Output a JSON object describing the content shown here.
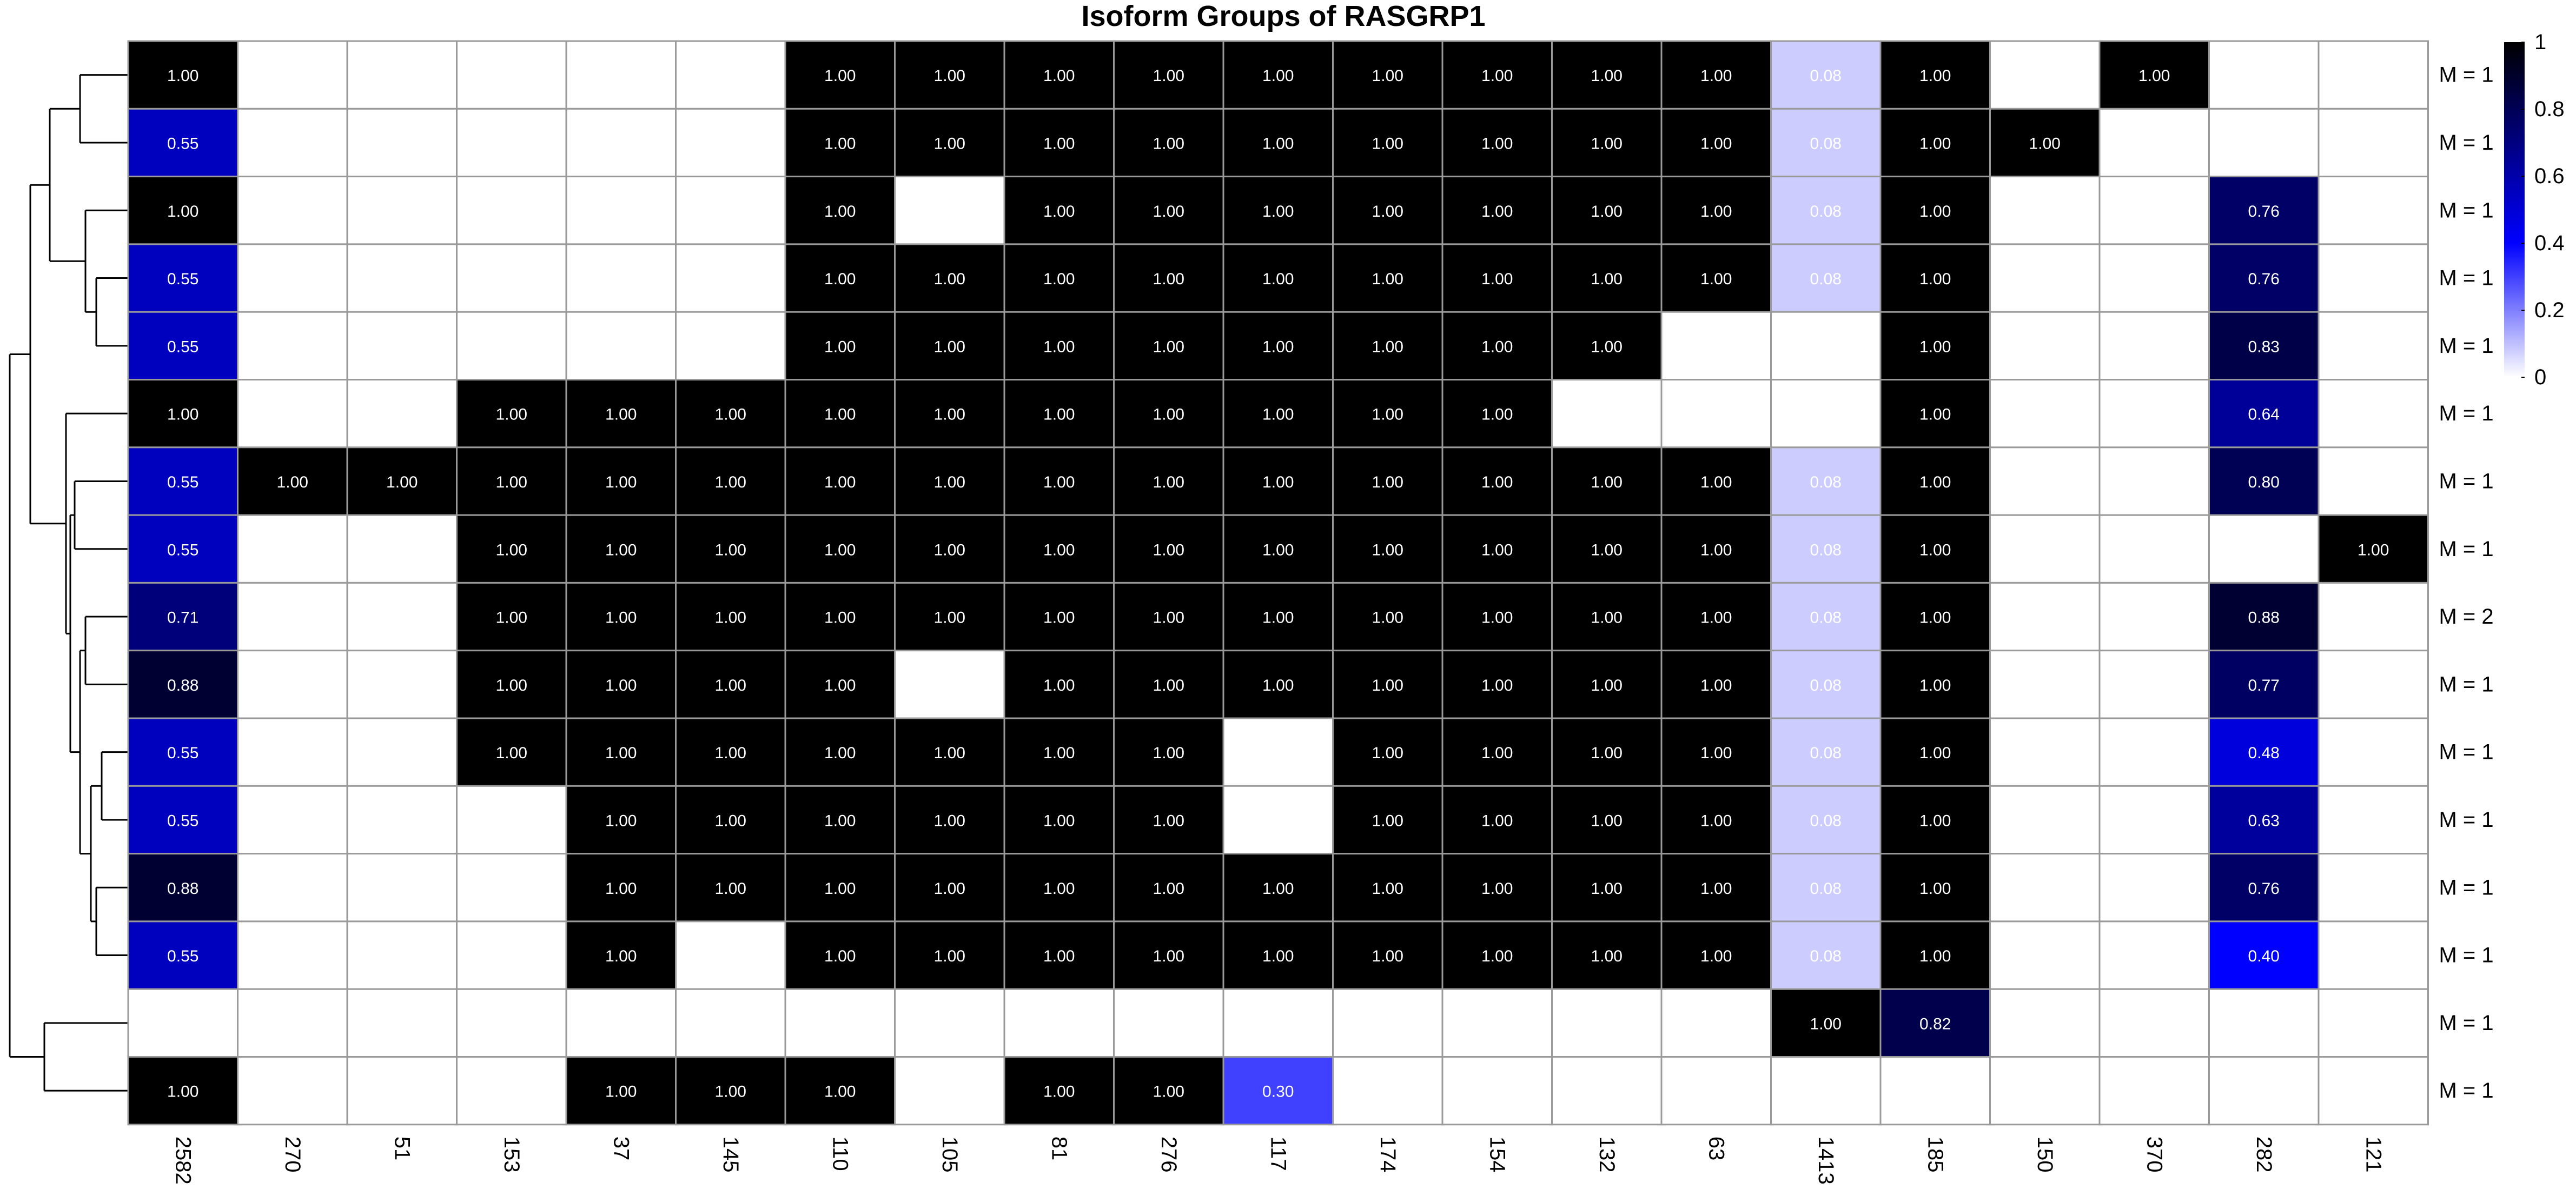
{
  "chart_data": {
    "type": "heatmap",
    "title": "Isoform Groups of RASGRP1",
    "columns": [
      "2582",
      "270",
      "51",
      "153",
      "37",
      "145",
      "110",
      "105",
      "81",
      "276",
      "117",
      "174",
      "154",
      "132",
      "63",
      "1413",
      "185",
      "150",
      "370",
      "282",
      "121"
    ],
    "rows": [
      {
        "label": "M = 1",
        "values": [
          1.0,
          null,
          null,
          null,
          null,
          null,
          1.0,
          1.0,
          1.0,
          1.0,
          1.0,
          1.0,
          1.0,
          1.0,
          1.0,
          0.08,
          1.0,
          null,
          1.0,
          null,
          null
        ]
      },
      {
        "label": "M = 1",
        "values": [
          0.55,
          null,
          null,
          null,
          null,
          null,
          1.0,
          1.0,
          1.0,
          1.0,
          1.0,
          1.0,
          1.0,
          1.0,
          1.0,
          0.08,
          1.0,
          1.0,
          null,
          null,
          null
        ]
      },
      {
        "label": "M = 1",
        "values": [
          1.0,
          null,
          null,
          null,
          null,
          null,
          1.0,
          null,
          1.0,
          1.0,
          1.0,
          1.0,
          1.0,
          1.0,
          1.0,
          0.08,
          1.0,
          null,
          null,
          0.76,
          null
        ]
      },
      {
        "label": "M = 1",
        "values": [
          0.55,
          null,
          null,
          null,
          null,
          null,
          1.0,
          1.0,
          1.0,
          1.0,
          1.0,
          1.0,
          1.0,
          1.0,
          1.0,
          0.08,
          1.0,
          null,
          null,
          0.76,
          null
        ]
      },
      {
        "label": "M = 1",
        "values": [
          0.55,
          null,
          null,
          null,
          null,
          null,
          1.0,
          1.0,
          1.0,
          1.0,
          1.0,
          1.0,
          1.0,
          1.0,
          null,
          null,
          1.0,
          null,
          null,
          0.83,
          null
        ]
      },
      {
        "label": "M = 1",
        "values": [
          1.0,
          null,
          null,
          1.0,
          1.0,
          1.0,
          1.0,
          1.0,
          1.0,
          1.0,
          1.0,
          1.0,
          1.0,
          null,
          null,
          null,
          1.0,
          null,
          null,
          0.64,
          null
        ]
      },
      {
        "label": "M = 1",
        "values": [
          0.55,
          1.0,
          1.0,
          1.0,
          1.0,
          1.0,
          1.0,
          1.0,
          1.0,
          1.0,
          1.0,
          1.0,
          1.0,
          1.0,
          1.0,
          0.08,
          1.0,
          null,
          null,
          0.8,
          null
        ]
      },
      {
        "label": "M = 1",
        "values": [
          0.55,
          null,
          null,
          1.0,
          1.0,
          1.0,
          1.0,
          1.0,
          1.0,
          1.0,
          1.0,
          1.0,
          1.0,
          1.0,
          1.0,
          0.08,
          1.0,
          null,
          null,
          null,
          1.0
        ]
      },
      {
        "label": "M = 2",
        "values": [
          0.71,
          null,
          null,
          1.0,
          1.0,
          1.0,
          1.0,
          1.0,
          1.0,
          1.0,
          1.0,
          1.0,
          1.0,
          1.0,
          1.0,
          0.08,
          1.0,
          null,
          null,
          0.88,
          null
        ]
      },
      {
        "label": "M = 1",
        "values": [
          0.88,
          null,
          null,
          1.0,
          1.0,
          1.0,
          1.0,
          null,
          1.0,
          1.0,
          1.0,
          1.0,
          1.0,
          1.0,
          1.0,
          0.08,
          1.0,
          null,
          null,
          0.77,
          null
        ]
      },
      {
        "label": "M = 1",
        "values": [
          0.55,
          null,
          null,
          1.0,
          1.0,
          1.0,
          1.0,
          1.0,
          1.0,
          1.0,
          null,
          1.0,
          1.0,
          1.0,
          1.0,
          0.08,
          1.0,
          null,
          null,
          0.48,
          null
        ]
      },
      {
        "label": "M = 1",
        "values": [
          0.55,
          null,
          null,
          null,
          1.0,
          1.0,
          1.0,
          1.0,
          1.0,
          1.0,
          null,
          1.0,
          1.0,
          1.0,
          1.0,
          0.08,
          1.0,
          null,
          null,
          0.63,
          null
        ]
      },
      {
        "label": "M = 1",
        "values": [
          0.88,
          null,
          null,
          null,
          1.0,
          1.0,
          1.0,
          1.0,
          1.0,
          1.0,
          1.0,
          1.0,
          1.0,
          1.0,
          1.0,
          0.08,
          1.0,
          null,
          null,
          0.76,
          null
        ]
      },
      {
        "label": "M = 1",
        "values": [
          0.55,
          null,
          null,
          null,
          1.0,
          null,
          1.0,
          1.0,
          1.0,
          1.0,
          1.0,
          1.0,
          1.0,
          1.0,
          1.0,
          0.08,
          1.0,
          null,
          null,
          0.4,
          null
        ]
      },
      {
        "label": "M = 1",
        "values": [
          null,
          null,
          null,
          null,
          null,
          null,
          null,
          null,
          null,
          null,
          null,
          null,
          null,
          null,
          null,
          1.0,
          0.82,
          null,
          null,
          null,
          null
        ]
      },
      {
        "label": "M = 1",
        "values": [
          1.0,
          null,
          null,
          null,
          1.0,
          1.0,
          1.0,
          null,
          1.0,
          1.0,
          0.3,
          null,
          null,
          null,
          null,
          null,
          null,
          null,
          null,
          null,
          null
        ]
      }
    ],
    "color_scale": {
      "min": 0,
      "max": 1,
      "stops": [
        {
          "value": 0,
          "color": "#ffffff"
        },
        {
          "value": 0.4,
          "color": "#0000ff"
        },
        {
          "value": 1,
          "color": "#000000"
        }
      ],
      "ticks": [
        0,
        0.2,
        0.4,
        0.6,
        0.8,
        1
      ],
      "tick_labels": [
        "0",
        "0.2",
        "0.4",
        "0.6",
        "0.8",
        "1"
      ]
    },
    "dendrogram": "row clustering dendrogram on left",
    "grid": true,
    "legend_placement": "right"
  }
}
